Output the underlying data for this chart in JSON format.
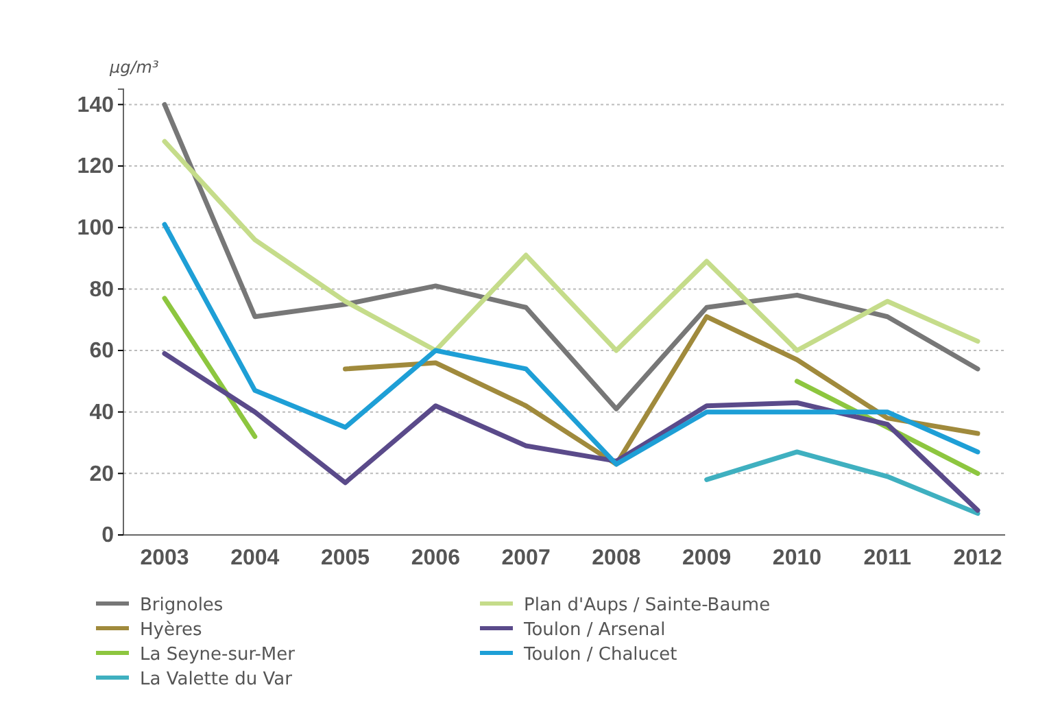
{
  "chart_data": {
    "type": "line",
    "ylabel": "µg/m³",
    "categories": [
      "2003",
      "2004",
      "2005",
      "2006",
      "2007",
      "2008",
      "2009",
      "2010",
      "2011",
      "2012"
    ],
    "ylim": [
      0,
      145
    ],
    "yticks": [
      0,
      20,
      40,
      60,
      80,
      100,
      120,
      140
    ],
    "grid": "y",
    "legend": "bottom",
    "line_style": "solid",
    "marker": "none",
    "series": [
      {
        "name": "Brignoles",
        "color": "#777777",
        "values": [
          140,
          71,
          75,
          81,
          74,
          41,
          74,
          78,
          71,
          54
        ]
      },
      {
        "name": "Hyères",
        "color": "#a08a3c",
        "values": [
          null,
          null,
          54,
          56,
          42,
          23,
          71,
          57,
          38,
          33
        ]
      },
      {
        "name": "La Seyne-sur-Mer",
        "color": "#8dc63f",
        "values": [
          77,
          32,
          null,
          null,
          null,
          null,
          null,
          50,
          35,
          20
        ]
      },
      {
        "name": "La Valette du Var",
        "color": "#3fb0c0",
        "values": [
          null,
          null,
          null,
          null,
          null,
          null,
          18,
          27,
          19,
          7
        ]
      },
      {
        "name": "Plan d'Aups / Sainte-Baume",
        "color": "#c5dc8a",
        "values": [
          128,
          96,
          76,
          60,
          91,
          60,
          89,
          60,
          76,
          63
        ]
      },
      {
        "name": "Toulon / Arsenal",
        "color": "#5a4a8a",
        "values": [
          59,
          40,
          17,
          42,
          29,
          24,
          42,
          43,
          36,
          8
        ]
      },
      {
        "name": "Toulon / Chalucet",
        "color": "#1e9fd6",
        "values": [
          101,
          47,
          35,
          60,
          54,
          23,
          40,
          40,
          40,
          27
        ]
      }
    ]
  }
}
